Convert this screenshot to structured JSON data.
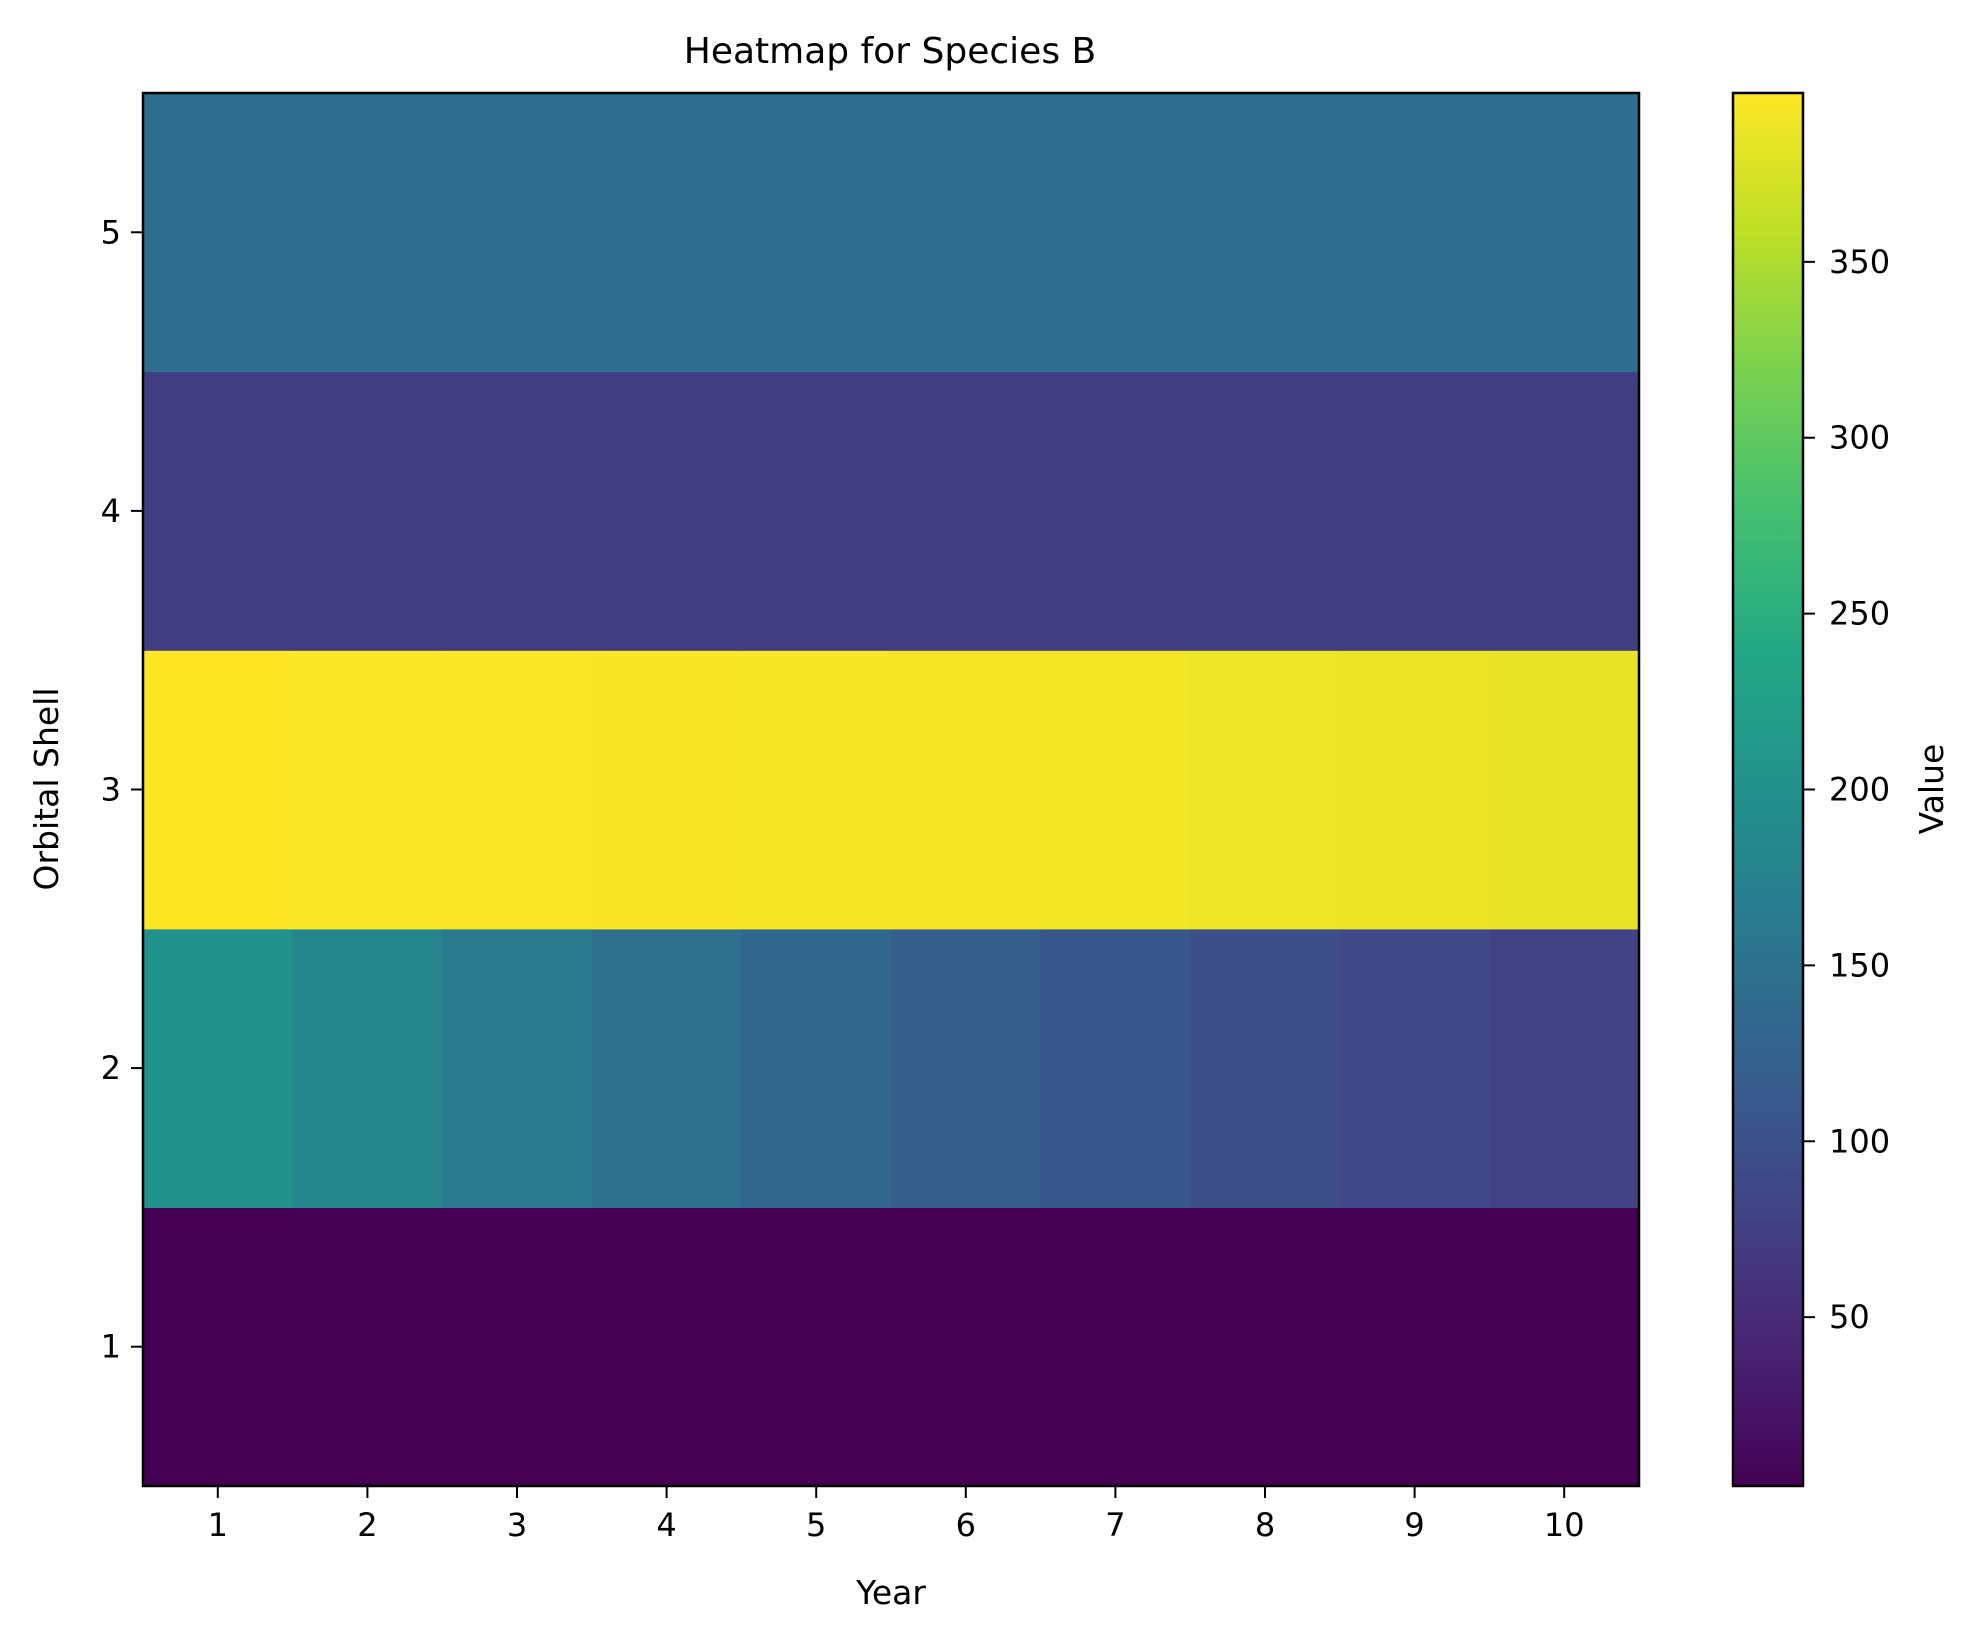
{
  "chart_data": {
    "type": "heatmap",
    "title": "Heatmap for Species B",
    "xlabel": "Year",
    "ylabel": "Orbital Shell",
    "x": [
      1,
      2,
      3,
      4,
      5,
      6,
      7,
      8,
      9,
      10
    ],
    "x_tick_labels": [
      "1",
      "2",
      "3",
      "4",
      "5",
      "6",
      "7",
      "8",
      "9",
      "10"
    ],
    "y": [
      1,
      2,
      3,
      4,
      5
    ],
    "y_tick_labels": [
      "1",
      "2",
      "3",
      "4",
      "5"
    ],
    "values": [
      [
        2,
        2,
        2,
        2,
        2,
        2,
        2,
        2,
        2,
        2
      ],
      [
        200,
        181,
        164,
        147,
        133,
        120,
        108,
        97,
        87,
        79
      ],
      [
        398,
        397,
        396,
        395,
        394,
        393,
        391,
        389,
        387,
        385
      ],
      [
        73,
        73,
        73,
        73,
        73,
        73,
        73,
        73,
        73,
        73
      ],
      [
        143,
        143,
        143,
        143,
        143,
        143,
        143,
        143,
        143,
        143
      ]
    ],
    "colormap": "viridis",
    "colorbar": {
      "label": "Value",
      "vmin": 2,
      "vmax": 398,
      "ticks": [
        50,
        100,
        150,
        200,
        250,
        300,
        350
      ],
      "tick_labels": [
        "50",
        "100",
        "150",
        "200",
        "250",
        "300",
        "350"
      ]
    },
    "grid": false
  }
}
